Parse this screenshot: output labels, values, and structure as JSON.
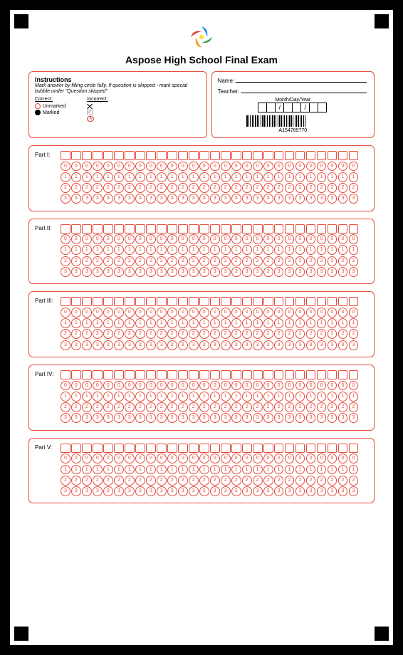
{
  "title": "Aspose High School Final Exam",
  "instructions": {
    "heading": "Instructions",
    "text": "Mark answer by filling circle fully. If question is skipped - mark special bubble under \"Question skipped\"",
    "correct_label": "Correct:",
    "incorrect_label": "Incorrect:",
    "unmarked": "Unmarked",
    "marked": "Marked"
  },
  "info": {
    "name_label": "Name:",
    "teacher_label": "Teacher:",
    "date_label": "Month/Day/Year",
    "date_separators": [
      "",
      "",
      "/",
      "",
      "",
      "/",
      "",
      ""
    ],
    "barcode_text": "A154789770"
  },
  "parts": [
    {
      "label": "Part I:",
      "columns": 28,
      "options": [
        "0",
        "1",
        "2",
        "3"
      ]
    },
    {
      "label": "Part II:",
      "columns": 28,
      "options": [
        "0",
        "1",
        "2",
        "3"
      ]
    },
    {
      "label": "Part III:",
      "columns": 28,
      "options": [
        "0",
        "1",
        "2",
        "3"
      ]
    },
    {
      "label": "Part IV:",
      "columns": 28,
      "options": [
        "0",
        "1",
        "2",
        "3"
      ]
    },
    {
      "label": "Part V:",
      "columns": 28,
      "options": [
        "0",
        "1",
        "2",
        "3"
      ]
    }
  ],
  "colors": {
    "accent": "#e74c3c",
    "text": "#000000",
    "bg": "#ffffff"
  }
}
